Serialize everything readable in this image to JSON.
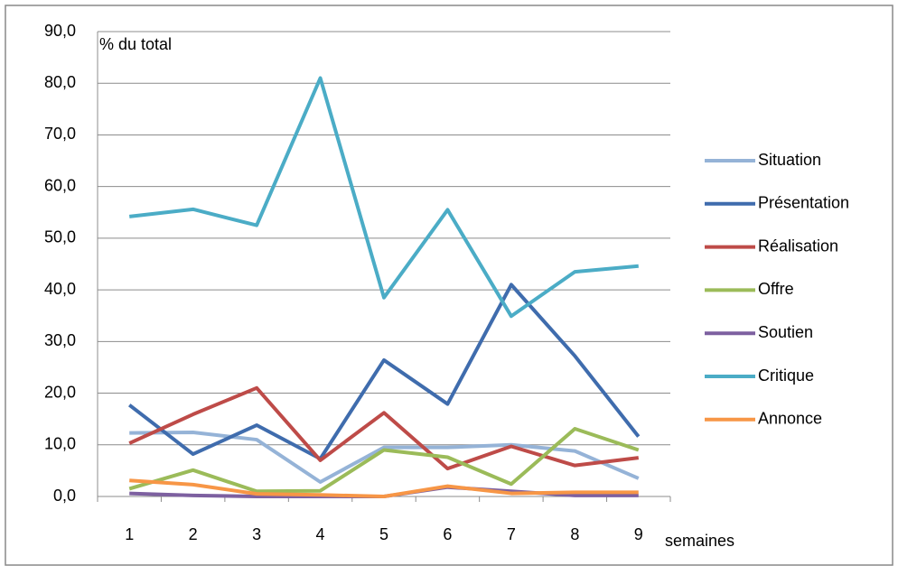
{
  "chart_data": {
    "type": "line",
    "y_label": "% du total",
    "x_label": "semaines",
    "categories": [
      "1",
      "2",
      "3",
      "4",
      "5",
      "6",
      "7",
      "8",
      "9"
    ],
    "ylim": [
      0,
      90
    ],
    "yticks": [
      {
        "value": 0,
        "label": "0,0"
      },
      {
        "value": 10,
        "label": "10,0"
      },
      {
        "value": 20,
        "label": "20,0"
      },
      {
        "value": 30,
        "label": "30,0"
      },
      {
        "value": 40,
        "label": "40,0"
      },
      {
        "value": 50,
        "label": "50,0"
      },
      {
        "value": 60,
        "label": "60,0"
      },
      {
        "value": 70,
        "label": "70,0"
      },
      {
        "value": 80,
        "label": "80,0"
      },
      {
        "value": 90,
        "label": "90,0"
      }
    ],
    "grid": true,
    "legend": "right",
    "series": [
      {
        "name": "Situation",
        "color": "#95B3D7",
        "values": [
          12.3,
          12.4,
          11.0,
          2.8,
          9.5,
          9.5,
          10.0,
          8.8,
          3.5
        ]
      },
      {
        "name": "Présentation",
        "color": "#3F6CAD",
        "values": [
          17.7,
          8.2,
          13.8,
          7.3,
          26.4,
          17.9,
          41.0,
          27.2,
          11.6
        ]
      },
      {
        "name": "Réalisation",
        "color": "#BE4B48",
        "values": [
          10.3,
          15.9,
          21.0,
          7.0,
          16.2,
          5.4,
          9.7,
          6.0,
          7.5
        ]
      },
      {
        "name": "Offre",
        "color": "#9BBB59",
        "values": [
          1.5,
          5.1,
          1.0,
          1.1,
          9.0,
          7.6,
          2.4,
          13.1,
          9.0
        ]
      },
      {
        "name": "Soutien",
        "color": "#7D60A0",
        "values": [
          0.6,
          0.2,
          0.0,
          0.0,
          0.0,
          1.8,
          1.0,
          0.2,
          0.2
        ]
      },
      {
        "name": "Critique",
        "color": "#4BACC6",
        "values": [
          54.2,
          55.6,
          52.5,
          81.0,
          38.5,
          55.5,
          34.9,
          43.5,
          44.6
        ]
      },
      {
        "name": "Annonce",
        "color": "#F79646",
        "values": [
          3.1,
          2.3,
          0.5,
          0.3,
          0.0,
          2.0,
          0.6,
          0.8,
          0.8
        ]
      }
    ]
  }
}
